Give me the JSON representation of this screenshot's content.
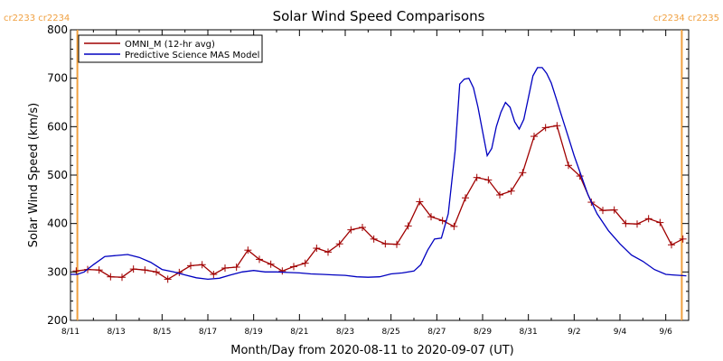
{
  "chart_data": {
    "type": "line",
    "title": "Solar Wind Speed Comparisons",
    "xlabel": "Month/Day from 2020-08-11 to 2020-09-07 (UT)",
    "ylabel": "Solar Wind Speed (km/s)",
    "xlim": [
      0,
      27
    ],
    "ylim": [
      200,
      800
    ],
    "x_ticks": [
      {
        "x": 0,
        "label": "8/11"
      },
      {
        "x": 2,
        "label": "8/13"
      },
      {
        "x": 4,
        "label": "8/15"
      },
      {
        "x": 6,
        "label": "8/17"
      },
      {
        "x": 8,
        "label": "8/19"
      },
      {
        "x": 10,
        "label": "8/21"
      },
      {
        "x": 12,
        "label": "8/23"
      },
      {
        "x": 14,
        "label": "8/25"
      },
      {
        "x": 16,
        "label": "8/27"
      },
      {
        "x": 18,
        "label": "8/29"
      },
      {
        "x": 20,
        "label": "8/31"
      },
      {
        "x": 22,
        "label": "9/2"
      },
      {
        "x": 24,
        "label": "9/4"
      },
      {
        "x": 26,
        "label": "9/6"
      }
    ],
    "y_ticks": [
      200,
      300,
      400,
      500,
      600,
      700,
      800
    ],
    "grid": false,
    "legend_position": "top-left",
    "carrington_markers": [
      {
        "x": 0.3,
        "label": "cr2233 cr2234",
        "color": "#f0a040",
        "side": "left"
      },
      {
        "x": 26.7,
        "label": "cr2234 cr2235",
        "color": "#f0a040",
        "side": "right"
      }
    ],
    "series": [
      {
        "name": "OMNI_M (12-hr avg)",
        "color": "#a00000",
        "markers": true,
        "x": [
          0.25,
          0.75,
          1.25,
          1.75,
          2.25,
          2.75,
          3.25,
          3.75,
          4.25,
          4.75,
          5.25,
          5.75,
          6.25,
          6.75,
          7.25,
          7.75,
          8.25,
          8.75,
          9.25,
          9.75,
          10.25,
          10.75,
          11.25,
          11.75,
          12.25,
          12.75,
          13.25,
          13.75,
          14.25,
          14.75,
          15.25,
          15.75,
          16.25,
          16.75,
          17.25,
          17.75,
          18.25,
          18.75,
          19.25,
          19.75,
          20.25,
          20.75,
          21.25,
          21.75,
          22.25,
          22.75,
          23.25,
          23.75,
          24.25,
          24.75,
          25.25,
          25.75,
          26.25,
          26.75
        ],
        "values": [
          302,
          305,
          304,
          290,
          289,
          306,
          304,
          300,
          285,
          299,
          313,
          315,
          295,
          308,
          310,
          345,
          326,
          316,
          302,
          311,
          318,
          349,
          341,
          358,
          387,
          392,
          368,
          358,
          357,
          395,
          445,
          414,
          406,
          394,
          453,
          495,
          490,
          459,
          467,
          505,
          580,
          598,
          602,
          520,
          498,
          444,
          427,
          428,
          400,
          399,
          410,
          402,
          356,
          368
        ]
      },
      {
        "name": "Predictive Science MAS Model",
        "color": "#0000c0",
        "markers": false,
        "x": [
          0.0,
          0.3,
          0.6,
          1.0,
          1.5,
          2.0,
          2.5,
          3.0,
          3.5,
          4.0,
          4.5,
          5.0,
          5.5,
          6.0,
          6.5,
          7.0,
          7.5,
          8.0,
          8.5,
          9.0,
          9.5,
          10.0,
          10.5,
          11.0,
          11.5,
          12.0,
          12.5,
          13.0,
          13.5,
          14.0,
          14.5,
          15.0,
          15.3,
          15.6,
          15.9,
          16.2,
          16.5,
          16.8,
          17.0,
          17.2,
          17.4,
          17.6,
          17.8,
          18.0,
          18.2,
          18.4,
          18.6,
          18.8,
          19.0,
          19.2,
          19.4,
          19.6,
          19.8,
          20.0,
          20.2,
          20.4,
          20.6,
          20.8,
          21.0,
          21.2,
          21.4,
          21.6,
          21.8,
          22.0,
          22.3,
          22.6,
          23.0,
          23.5,
          24.0,
          24.5,
          25.0,
          25.5,
          26.0,
          26.3,
          26.6,
          26.9
        ],
        "values": [
          295,
          295,
          300,
          315,
          332,
          334,
          336,
          330,
          320,
          305,
          300,
          294,
          288,
          285,
          287,
          294,
          300,
          303,
          300,
          300,
          299,
          298,
          296,
          295,
          294,
          293,
          290,
          289,
          290,
          296,
          298,
          302,
          315,
          345,
          368,
          370,
          420,
          550,
          688,
          698,
          700,
          680,
          640,
          590,
          540,
          555,
          600,
          630,
          650,
          640,
          610,
          595,
          615,
          660,
          705,
          722,
          722,
          710,
          690,
          660,
          630,
          600,
          570,
          540,
          500,
          460,
          420,
          385,
          358,
          335,
          322,
          305,
          295,
          294,
          293,
          292
        ]
      }
    ]
  }
}
